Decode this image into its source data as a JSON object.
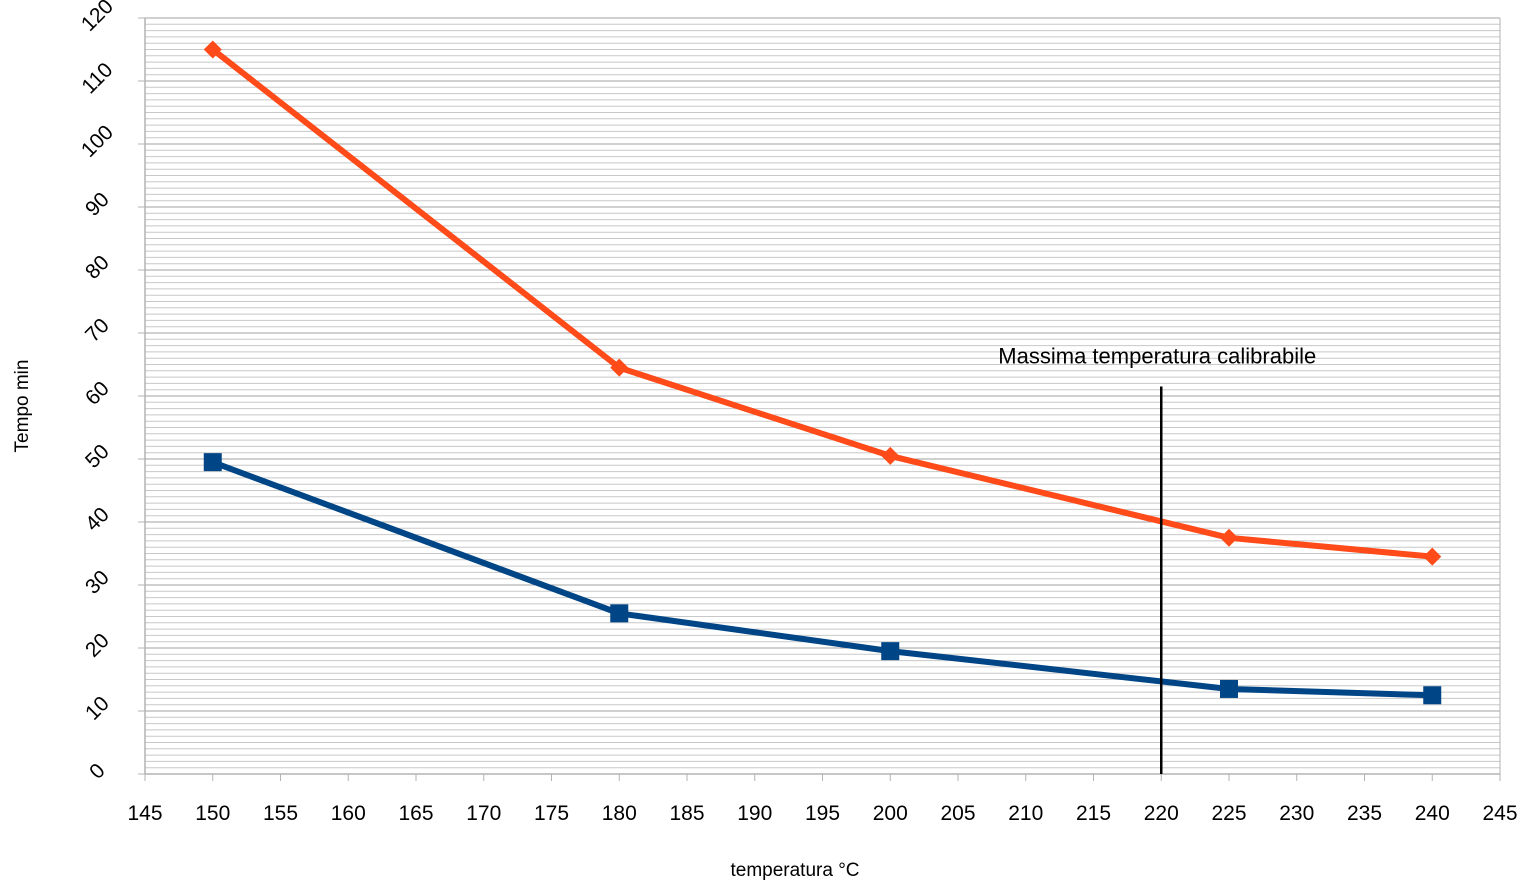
{
  "chart_data": {
    "type": "line",
    "title": "",
    "xlabel": "temperatura °C",
    "ylabel": "Tempo min",
    "xlim": [
      145,
      245
    ],
    "ylim": [
      0,
      120
    ],
    "x_ticks": [
      145,
      150,
      155,
      160,
      165,
      170,
      175,
      180,
      185,
      190,
      195,
      200,
      205,
      210,
      215,
      220,
      225,
      230,
      235,
      240,
      245
    ],
    "y_ticks": [
      0,
      10,
      20,
      30,
      40,
      50,
      60,
      70,
      80,
      90,
      100,
      110,
      120
    ],
    "grid": "horizontal minor lines every 1 min",
    "legend": "none",
    "series": [
      {
        "color": "#ff4a19",
        "marker": "diamond",
        "points": [
          [
            150,
            115
          ],
          [
            180,
            64.5
          ],
          [
            200,
            50.5
          ],
          [
            225,
            37.5
          ],
          [
            240,
            34.5
          ]
        ]
      },
      {
        "color": "#004586",
        "marker": "square",
        "points": [
          [
            150,
            49.5
          ],
          [
            180,
            25.5
          ],
          [
            200,
            19.5
          ],
          [
            225,
            13.5
          ],
          [
            240,
            12.5
          ]
        ]
      }
    ],
    "annotations": [
      {
        "text": "Massima temperatura calibrabile",
        "x": 220,
        "y_from": 0,
        "y_to": 61.5,
        "color": "#000000"
      }
    ]
  }
}
